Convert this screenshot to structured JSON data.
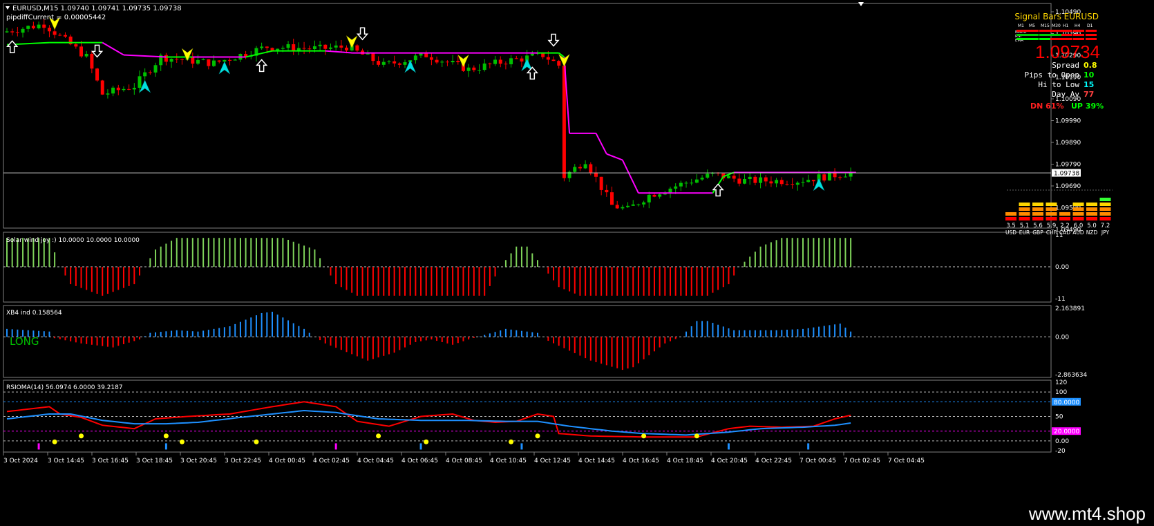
{
  "header": {
    "symbol_line": "EURUSD,M15  1.09740 1.09741 1.09735 1.09738",
    "indicator_line": "pipdiffCurrent = 0.00005442"
  },
  "signal_panel": {
    "title": "Signal Bars EURUSD",
    "tf_labels": [
      "M1",
      "M5",
      "M15",
      "M30",
      "H1",
      "H4",
      "D1"
    ],
    "row_labels": [
      "MACD",
      "RSI",
      "EMA"
    ],
    "price": "1.09734",
    "stats": [
      {
        "label": "Spread",
        "value": "0.8",
        "color": "#ffff00"
      },
      {
        "label": "Pips to Open",
        "value": "10",
        "color": "#00ff00"
      },
      {
        "label": "Hi to Low",
        "value": "15",
        "color": "#00ffff"
      },
      {
        "label": "Day Av",
        "value": "77",
        "color": "#ff4040"
      }
    ],
    "dn": "DN 61%",
    "up": "UP 39%"
  },
  "currency_strength": {
    "currencies": [
      "USD",
      "EUR",
      "GBP",
      "CHF",
      "CAD",
      "AUD",
      "NZD",
      "JPY"
    ],
    "values": [
      3.5,
      5.1,
      5.6,
      5.9,
      2.2,
      6.0,
      5.0,
      7.2
    ],
    "labels": [
      "3.5",
      "5.1",
      "5.6",
      "5.9",
      "2.2",
      "6.0",
      "5.0",
      "7.2"
    ]
  },
  "current_price_tag": "1.09738",
  "panel_labels": {
    "p2": "Solar wind joy :) 10.0000 10.0000 10.0000",
    "p3": "XB4 ind 0.158564",
    "p3_signal": "LONG",
    "p4": "RSIOMA(14) 56.0974 6.0000 39.2187"
  },
  "watermark": "www.mt4.shop",
  "colors": {
    "bull": "#00c000",
    "bear": "#ff0000",
    "trend_up": "#00ff00",
    "trend_down": "#ff00ff",
    "hist_blue": "#1e90ff",
    "grid": "#808080"
  },
  "chart_data": [
    {
      "type": "candlestick",
      "title": "EURUSD,M15",
      "yticks": [
        "1.10490",
        "1.10390",
        "1.10290",
        "1.10190",
        "1.10090",
        "1.09990",
        "1.09890",
        "1.09790",
        "1.09690",
        "1.09590",
        "1.09490"
      ],
      "ylim": [
        1.0948,
        1.1055
      ],
      "xticks": [
        "3 Oct 2024",
        "3 Oct 14:45",
        "3 Oct 16:45",
        "3 Oct 18:45",
        "3 Oct 20:45",
        "3 Oct 22:45",
        "4 Oct 00:45",
        "4 Oct 02:45",
        "4 Oct 04:45",
        "4 Oct 06:45",
        "4 Oct 08:45",
        "4 Oct 10:45",
        "4 Oct 12:45",
        "4 Oct 14:45",
        "4 Oct 16:45",
        "4 Oct 18:45",
        "4 Oct 20:45",
        "4 Oct 22:45",
        "7 Oct 00:45",
        "7 Oct 02:45",
        "7 Oct 04:45"
      ],
      "bars": 160,
      "current_price": 1.09738,
      "close_path": [
        [
          0,
          1.1042
        ],
        [
          8,
          1.1046
        ],
        [
          16,
          1.103
        ],
        [
          19,
          1.1012
        ],
        [
          25,
          1.1016
        ],
        [
          30,
          1.103
        ],
        [
          40,
          1.1027
        ],
        [
          50,
          1.1035
        ],
        [
          60,
          1.1034
        ],
        [
          65,
          1.1035
        ],
        [
          72,
          1.1026
        ],
        [
          80,
          1.1031
        ],
        [
          88,
          1.1024
        ],
        [
          95,
          1.1028
        ],
        [
          102,
          1.1031
        ],
        [
          105,
          1.1026
        ],
        [
          106,
          1.0972
        ],
        [
          110,
          1.098
        ],
        [
          115,
          1.0958
        ],
        [
          118,
          1.0956
        ],
        [
          122,
          1.0963
        ],
        [
          130,
          1.097
        ],
        [
          134,
          1.0973
        ],
        [
          140,
          1.097
        ],
        [
          150,
          1.097
        ],
        [
          160,
          1.0974
        ]
      ],
      "trend_line": [
        [
          0,
          1.1036,
          "up"
        ],
        [
          8,
          1.1037,
          "up"
        ],
        [
          18,
          1.1037,
          "down"
        ],
        [
          22,
          1.1031,
          "down"
        ],
        [
          30,
          1.103,
          "up"
        ],
        [
          35,
          1.103,
          "down"
        ],
        [
          45,
          1.103,
          "up"
        ],
        [
          50,
          1.1033,
          "up"
        ],
        [
          60,
          1.1033,
          "down"
        ],
        [
          65,
          1.1032,
          "down"
        ],
        [
          100,
          1.1032,
          "up"
        ],
        [
          104,
          1.1032,
          "up"
        ],
        [
          105,
          1.103,
          "down"
        ],
        [
          106,
          1.0993,
          "down"
        ],
        [
          111,
          1.0993,
          "down"
        ],
        [
          113,
          1.0983,
          "down"
        ],
        [
          116,
          1.098,
          "down"
        ],
        [
          119,
          1.0964,
          "down"
        ],
        [
          133,
          1.0964,
          "up"
        ],
        [
          135,
          1.0972,
          "up"
        ],
        [
          137,
          1.0974,
          "down"
        ],
        [
          160,
          1.0974,
          "up"
        ]
      ],
      "arrows": [
        [
          1,
          "white_up"
        ],
        [
          9,
          "yellow_down"
        ],
        [
          17,
          "white_down"
        ],
        [
          26,
          "cyan_up"
        ],
        [
          34,
          "yellow_down"
        ],
        [
          41,
          "cyan_up"
        ],
        [
          48,
          "white_up"
        ],
        [
          65,
          "yellow_down"
        ],
        [
          67,
          "white_down"
        ],
        [
          76,
          "cyan_up"
        ],
        [
          86,
          "yellow_down"
        ],
        [
          98,
          "cyan_up"
        ],
        [
          99,
          "white_up"
        ],
        [
          103,
          "white_down"
        ],
        [
          105,
          "yellow_down"
        ],
        [
          134,
          "white_up"
        ],
        [
          153,
          "cyan_up"
        ]
      ]
    },
    {
      "type": "histogram",
      "title": "Solar wind joy :)",
      "yticks": [
        "11",
        "0.00",
        "-11"
      ],
      "ylim": [
        -11,
        11
      ],
      "profile": [
        [
          0,
          10
        ],
        [
          8,
          10
        ],
        [
          10,
          0
        ],
        [
          12,
          -6
        ],
        [
          18,
          -10
        ],
        [
          24,
          -6
        ],
        [
          26,
          0
        ],
        [
          28,
          6
        ],
        [
          32,
          10
        ],
        [
          52,
          10
        ],
        [
          58,
          6
        ],
        [
          60,
          0
        ],
        [
          62,
          -6
        ],
        [
          66,
          -10
        ],
        [
          90,
          -10
        ],
        [
          93,
          0
        ],
        [
          96,
          7
        ],
        [
          98,
          7
        ],
        [
          101,
          0
        ],
        [
          104,
          -7
        ],
        [
          108,
          -10
        ],
        [
          132,
          -10
        ],
        [
          136,
          -6
        ],
        [
          138,
          0
        ],
        [
          142,
          7
        ],
        [
          146,
          10
        ],
        [
          160,
          10
        ]
      ]
    },
    {
      "type": "histogram",
      "title": "XB4 ind",
      "yticks": [
        "2.163891",
        "0.00",
        "-2.863634"
      ],
      "ylim": [
        -2.863634,
        2.163891
      ],
      "profile": [
        [
          0,
          0.6
        ],
        [
          8,
          0.4
        ],
        [
          9,
          -0.1
        ],
        [
          14,
          -0.5
        ],
        [
          20,
          -0.8
        ],
        [
          25,
          -0.2
        ],
        [
          27,
          0.3
        ],
        [
          32,
          0.5
        ],
        [
          36,
          0.4
        ],
        [
          42,
          0.8
        ],
        [
          48,
          1.8
        ],
        [
          50,
          1.9
        ],
        [
          56,
          0.6
        ],
        [
          58,
          0
        ],
        [
          60,
          -0.5
        ],
        [
          68,
          -1.8
        ],
        [
          73,
          -1.2
        ],
        [
          77,
          -0.4
        ],
        [
          80,
          -0.2
        ],
        [
          84,
          -0.6
        ],
        [
          87,
          -0.2
        ],
        [
          94,
          0.6
        ],
        [
          100,
          0.3
        ],
        [
          102,
          -0.3
        ],
        [
          110,
          -1.8
        ],
        [
          116,
          -2.5
        ],
        [
          118,
          -2.3
        ],
        [
          124,
          -0.5
        ],
        [
          127,
          0
        ],
        [
          130,
          1.2
        ],
        [
          132,
          1.2
        ],
        [
          137,
          0.5
        ],
        [
          145,
          0.5
        ],
        [
          150,
          0.6
        ],
        [
          157,
          1.0
        ],
        [
          160,
          0.1
        ]
      ]
    },
    {
      "type": "line",
      "title": "RSIOMA(14)",
      "yticks": [
        "120",
        "100",
        "50",
        "0.00",
        "-20"
      ],
      "ylim": [
        -20,
        120
      ],
      "levels": [
        [
          "80.0000",
          80,
          "#1e90ff"
        ],
        [
          "20.0000",
          20,
          "#ff00ff"
        ]
      ],
      "guides": [
        100,
        50,
        0
      ],
      "series": [
        {
          "color": "#ff0000",
          "points": [
            [
              0,
              60
            ],
            [
              4,
              65
            ],
            [
              8,
              70
            ],
            [
              10,
              55
            ],
            [
              14,
              48
            ],
            [
              18,
              32
            ],
            [
              24,
              25
            ],
            [
              28,
              45
            ],
            [
              34,
              50
            ],
            [
              42,
              55
            ],
            [
              50,
              70
            ],
            [
              56,
              80
            ],
            [
              62,
              70
            ],
            [
              66,
              40
            ],
            [
              72,
              30
            ],
            [
              78,
              50
            ],
            [
              84,
              55
            ],
            [
              88,
              42
            ],
            [
              92,
              38
            ],
            [
              96,
              40
            ],
            [
              100,
              55
            ],
            [
              103,
              50
            ],
            [
              104,
              15
            ],
            [
              110,
              10
            ],
            [
              120,
              8
            ],
            [
              130,
              8
            ],
            [
              136,
              25
            ],
            [
              140,
              30
            ],
            [
              146,
              28
            ],
            [
              152,
              30
            ],
            [
              156,
              45
            ],
            [
              160,
              55
            ]
          ]
        },
        {
          "color": "#1e90ff",
          "points": [
            [
              0,
              45
            ],
            [
              8,
              55
            ],
            [
              12,
              55
            ],
            [
              18,
              42
            ],
            [
              24,
              35
            ],
            [
              30,
              35
            ],
            [
              36,
              38
            ],
            [
              44,
              48
            ],
            [
              50,
              55
            ],
            [
              56,
              62
            ],
            [
              62,
              58
            ],
            [
              70,
              45
            ],
            [
              78,
              42
            ],
            [
              86,
              42
            ],
            [
              94,
              40
            ],
            [
              100,
              40
            ],
            [
              106,
              30
            ],
            [
              114,
              20
            ],
            [
              120,
              15
            ],
            [
              128,
              12
            ],
            [
              136,
              18
            ],
            [
              142,
              25
            ],
            [
              150,
              28
            ],
            [
              156,
              32
            ],
            [
              160,
              38
            ]
          ]
        }
      ],
      "dots": [
        [
          9,
          "#ffff00"
        ],
        [
          14,
          "#ffff00"
        ],
        [
          30,
          "#ffff00"
        ],
        [
          33,
          "#ffff00"
        ],
        [
          47,
          "#ffff00"
        ],
        [
          70,
          "#ffff00"
        ],
        [
          79,
          "#ffff00"
        ],
        [
          95,
          "#ffff00"
        ],
        [
          100,
          "#ffff00"
        ],
        [
          120,
          "#ffff00"
        ],
        [
          130,
          "#ffff00"
        ]
      ],
      "ticks": [
        [
          6,
          "#ff00ff"
        ],
        [
          30,
          "#1e90ff"
        ],
        [
          62,
          "#ff00ff"
        ],
        [
          78,
          "#1e90ff"
        ],
        [
          97,
          "#1e90ff"
        ],
        [
          136,
          "#1e90ff"
        ],
        [
          151,
          "#1e90ff"
        ]
      ]
    }
  ]
}
